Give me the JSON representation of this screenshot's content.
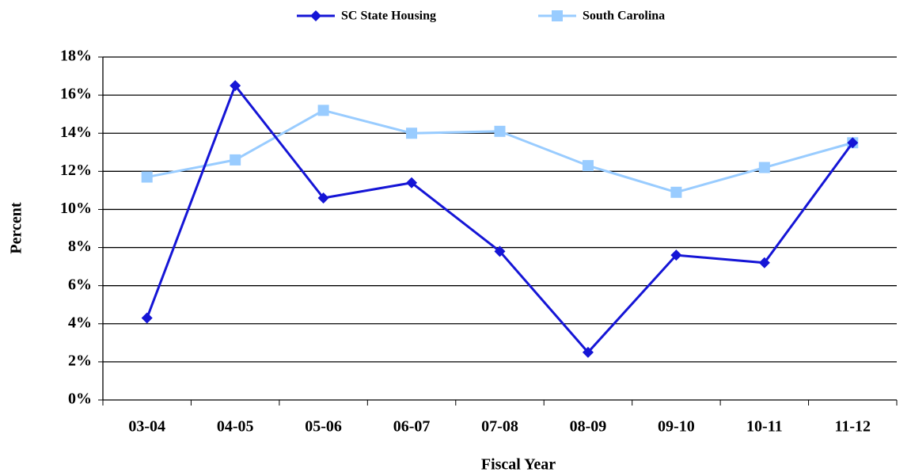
{
  "chart_data": {
    "type": "line",
    "x_label": "Fiscal Year",
    "y_label": "Percent",
    "categories": [
      "03-04",
      "04-05",
      "05-06",
      "06-07",
      "07-08",
      "08-09",
      "09-10",
      "10-11",
      "11-12"
    ],
    "series": [
      {
        "name": "SC State Housing",
        "color": "#1515d6",
        "marker": "diamond",
        "values": [
          4.3,
          16.5,
          10.6,
          11.4,
          7.8,
          2.5,
          7.6,
          7.2,
          13.5
        ]
      },
      {
        "name": "South Carolina",
        "color": "#99ccff",
        "marker": "square",
        "values": [
          11.7,
          12.6,
          15.2,
          14.0,
          14.1,
          12.3,
          10.9,
          12.2,
          13.5
        ]
      }
    ],
    "ylim": [
      0,
      18
    ],
    "yticks": [
      {
        "value": 0,
        "label": "0%"
      },
      {
        "value": 2,
        "label": "2%"
      },
      {
        "value": 4,
        "label": "4%"
      },
      {
        "value": 6,
        "label": "6%"
      },
      {
        "value": 8,
        "label": "8%"
      },
      {
        "value": 10,
        "label": "10%"
      },
      {
        "value": 12,
        "label": "12%"
      },
      {
        "value": 14,
        "label": "14%"
      },
      {
        "value": 16,
        "label": "16%"
      },
      {
        "value": 18,
        "label": "18%"
      }
    ],
    "grid": true,
    "legend": "top"
  }
}
